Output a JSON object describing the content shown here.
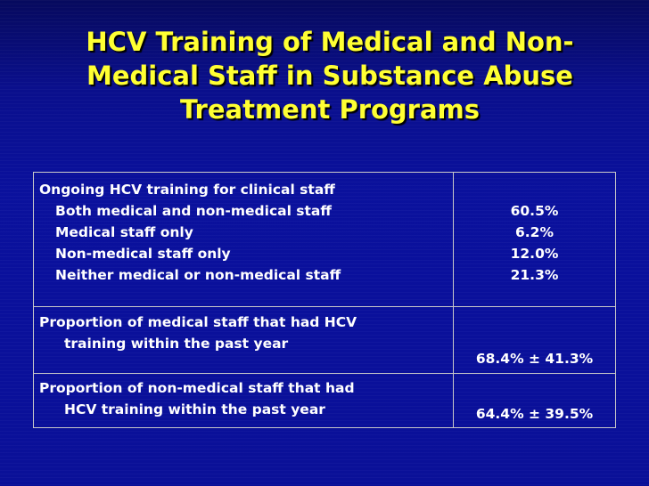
{
  "title": {
    "line1": "HCV Training of Medical and Non-",
    "line2": "Medical Staff in Substance Abuse",
    "line3": "Treatment Programs"
  },
  "table": {
    "row1": {
      "heading": "Ongoing HCV training for clinical staff",
      "items": [
        {
          "label": "Both medical and non-medical staff",
          "value": "60.5%"
        },
        {
          "label": "Medical staff only",
          "value": "6.2%"
        },
        {
          "label": "Non-medical staff only",
          "value": "12.0%"
        },
        {
          "label": "Neither medical or non-medical staff",
          "value": "21.3%"
        }
      ]
    },
    "row2": {
      "line1": "Proportion of medical staff that had HCV",
      "line2": "training within the past year",
      "value": "68.4% ± 41.3%"
    },
    "row3": {
      "line1": "Proportion of non-medical staff that had",
      "line2": "HCV training within the past year",
      "value": "64.4% ± 39.5%"
    }
  }
}
